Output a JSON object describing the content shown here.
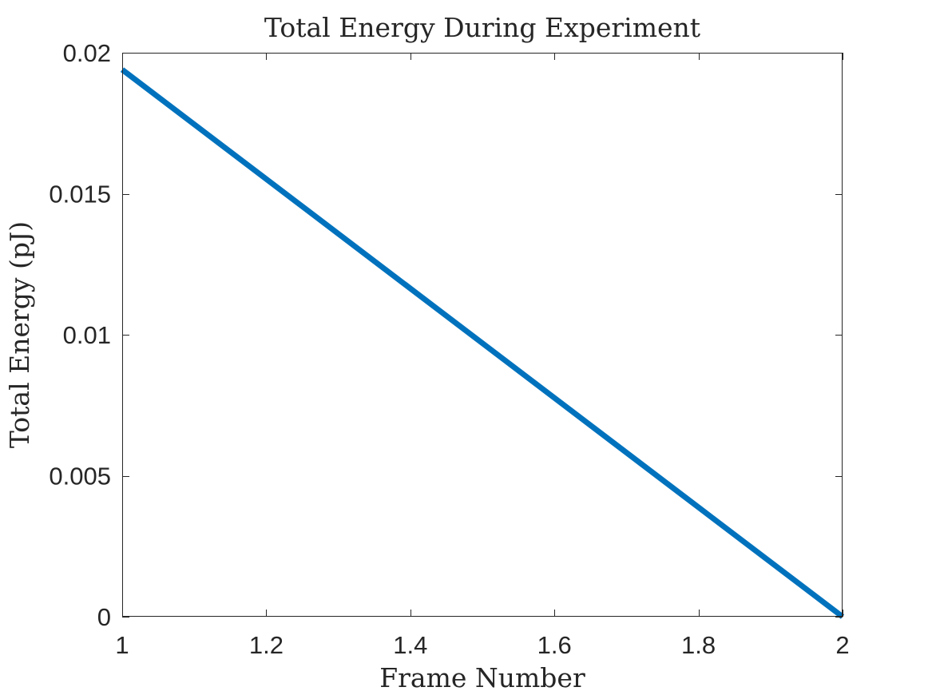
{
  "chart_data": {
    "type": "line",
    "title": "Total Energy During Experiment",
    "xlabel": "Frame Number",
    "ylabel": "Total Energy (pJ)",
    "xlim": [
      1,
      2
    ],
    "ylim": [
      0,
      0.02
    ],
    "xticks": [
      1,
      1.2,
      1.4,
      1.6,
      1.8,
      2
    ],
    "xtick_labels": [
      "1",
      "1.2",
      "1.4",
      "1.6",
      "1.8",
      "2"
    ],
    "yticks": [
      0,
      0.005,
      0.01,
      0.015,
      0.02
    ],
    "ytick_labels": [
      "0",
      "0.005",
      "0.01",
      "0.015",
      "0.02"
    ],
    "grid": false,
    "series": [
      {
        "color": "#0072BD",
        "x": [
          1,
          2
        ],
        "y": [
          0.0194,
          0.0
        ]
      }
    ]
  }
}
